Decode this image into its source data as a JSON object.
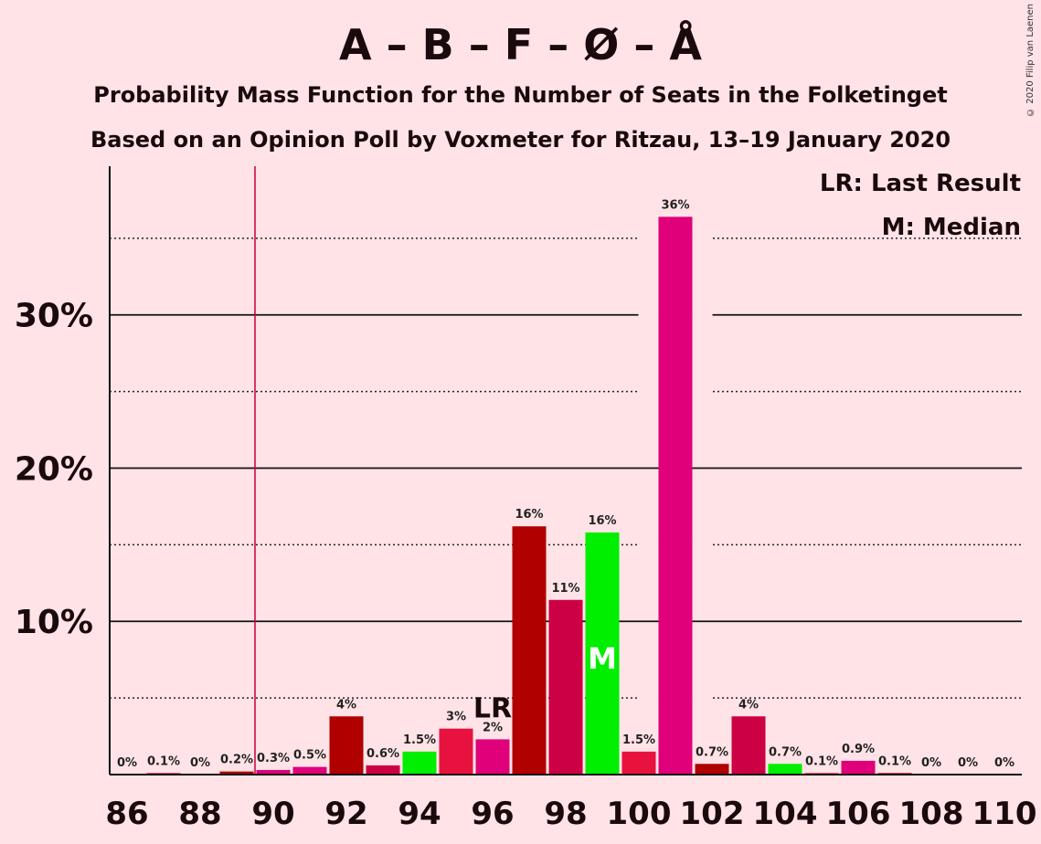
{
  "header": {
    "title": "A – B – F – Ø – Å",
    "subtitle1": "Probability Mass Function for the Number of Seats in the Folketinget",
    "subtitle2": "Based on an Opinion Poll by Voxmeter for Ritzau, 13–19 January 2020",
    "copyright": "© 2020 Filip van Laenen"
  },
  "legend": {
    "lr": "LR: Last Result",
    "median": "M: Median"
  },
  "chart_data": {
    "type": "bar",
    "x": [
      86,
      87,
      88,
      89,
      90,
      91,
      92,
      93,
      94,
      95,
      96,
      97,
      98,
      99,
      100,
      101,
      102,
      103,
      104,
      105,
      106,
      107,
      108,
      109,
      110
    ],
    "values": [
      0,
      0.1,
      0,
      0.2,
      0.3,
      0.5,
      3.8,
      0.6,
      1.5,
      3.0,
      2.3,
      16.2,
      11.4,
      15.8,
      1.5,
      36.4,
      0.7,
      3.8,
      0.7,
      0.1,
      0.9,
      0.1,
      0,
      0,
      0
    ],
    "labels": [
      "0%",
      "0.1%",
      "0%",
      "0.2%",
      "0.3%",
      "0.5%",
      "4%",
      "0.6%",
      "1.5%",
      "3%",
      "2%",
      "16%",
      "11%",
      "16%",
      "1.5%",
      "36%",
      "0.7%",
      "4%",
      "0.7%",
      "0.1%",
      "0.9%",
      "0.1%",
      "0%",
      "0%",
      "0%"
    ],
    "colors": [
      "#b00000",
      "#cc0044",
      "#e0007a",
      "#b00000",
      "#e0007a",
      "#e0007a",
      "#b00000",
      "#cc0044",
      "#00ee00",
      "#e8123e",
      "#e0007a",
      "#b00000",
      "#cc0044",
      "#00ee00",
      "#e8123e",
      "#e0007a",
      "#b00000",
      "#cc0044",
      "#00ee00",
      "#e8123e",
      "#e0007a",
      "#b00000",
      "#cc0044",
      "#00ee00",
      "#e8123e"
    ],
    "xticks": [
      86,
      88,
      90,
      92,
      94,
      96,
      98,
      100,
      102,
      104,
      106,
      108,
      110
    ],
    "xtick_labels": [
      "86",
      "88",
      "90",
      "92",
      "94",
      "96",
      "98",
      "100",
      "102",
      "104",
      "106",
      "108",
      "110"
    ],
    "yticks": [
      10,
      20,
      30
    ],
    "ytick_labels": [
      "10%",
      "20%",
      "30%"
    ],
    "ylim": [
      0,
      39.7
    ],
    "last_result": 89.5,
    "last_result_label": "LR",
    "median": 99,
    "median_label": "M",
    "lr_label_at": 96,
    "grid": true
  }
}
